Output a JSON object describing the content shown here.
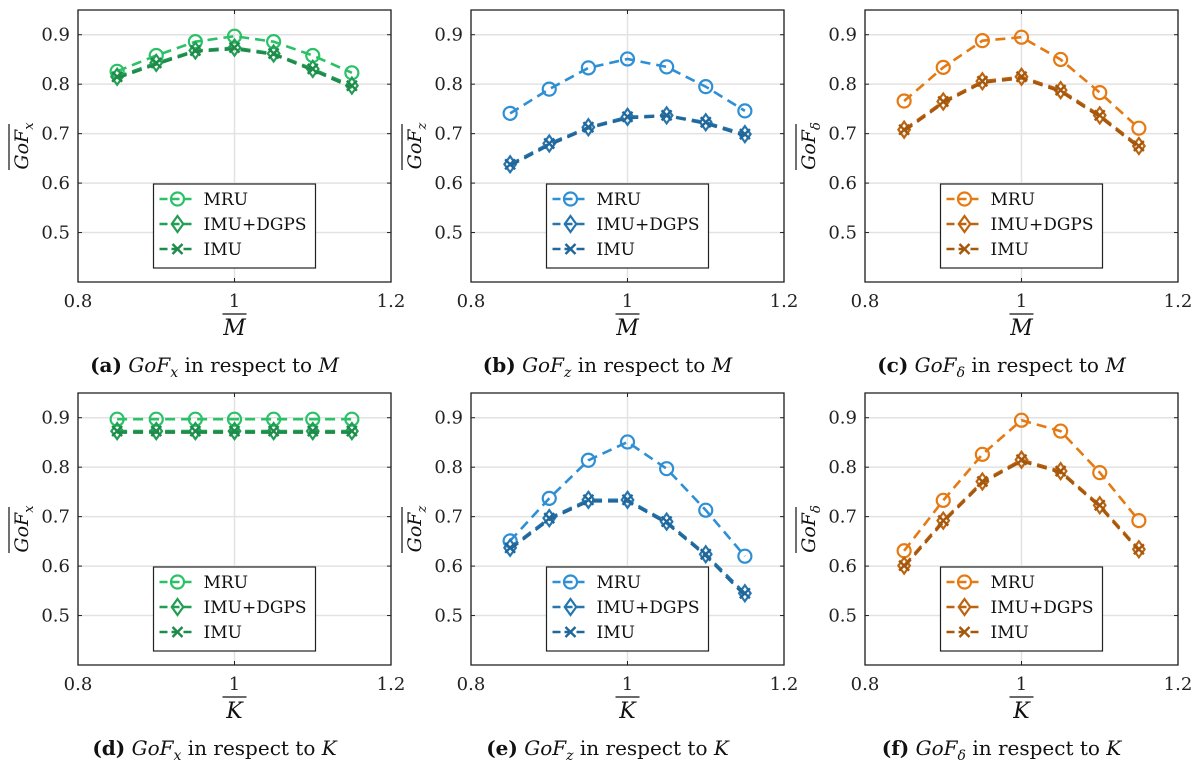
{
  "chart_data": [
    {
      "id": "a",
      "type": "line",
      "xlabel": "M",
      "ylabel": "GoF",
      "ylabel_sub": "x",
      "xlim": [
        0.8,
        1.2
      ],
      "ylim": [
        0.4,
        0.95
      ],
      "xticks": [
        "0.8",
        "1",
        "1.2"
      ],
      "yticks": [
        "0.5",
        "0.6",
        "0.7",
        "0.8",
        "0.9"
      ],
      "grid": true,
      "legend_position": "bottom-center",
      "color": "#2ac167",
      "x": [
        0.85,
        0.9,
        0.95,
        1.0,
        1.05,
        1.1,
        1.15
      ],
      "series": [
        {
          "name": "MRU",
          "marker": "circle",
          "values": [
            0.826,
            0.858,
            0.886,
            0.897,
            0.886,
            0.858,
            0.823
          ]
        },
        {
          "name": "IMU+DGPS",
          "marker": "diamond",
          "values": [
            0.815,
            0.843,
            0.868,
            0.874,
            0.862,
            0.831,
            0.797
          ]
        },
        {
          "name": "IMU",
          "marker": "x",
          "values": [
            0.812,
            0.84,
            0.866,
            0.871,
            0.86,
            0.828,
            0.793
          ]
        }
      ],
      "caption_label": "(a)",
      "caption_text": "in respect to",
      "caption_var": "M"
    },
    {
      "id": "b",
      "type": "line",
      "xlabel": "M",
      "ylabel": "GoF",
      "ylabel_sub": "z",
      "xlim": [
        0.8,
        1.2
      ],
      "ylim": [
        0.4,
        0.95
      ],
      "xticks": [
        "0.8",
        "1",
        "1.2"
      ],
      "yticks": [
        "0.5",
        "0.6",
        "0.7",
        "0.8",
        "0.9"
      ],
      "grid": true,
      "legend_position": "bottom-center",
      "color": "#2e8fd4",
      "x": [
        0.85,
        0.9,
        0.95,
        1.0,
        1.05,
        1.1,
        1.15
      ],
      "series": [
        {
          "name": "MRU",
          "marker": "circle",
          "values": [
            0.741,
            0.79,
            0.833,
            0.851,
            0.835,
            0.795,
            0.746
          ]
        },
        {
          "name": "IMU+DGPS",
          "marker": "diamond",
          "values": [
            0.638,
            0.68,
            0.713,
            0.734,
            0.737,
            0.723,
            0.699
          ]
        },
        {
          "name": "IMU",
          "marker": "x",
          "values": [
            0.635,
            0.677,
            0.711,
            0.731,
            0.736,
            0.72,
            0.696
          ]
        }
      ],
      "caption_label": "(b)",
      "caption_text": "in respect to",
      "caption_var": "M"
    },
    {
      "id": "c",
      "type": "line",
      "xlabel": "M",
      "ylabel": "GoF",
      "ylabel_sub": "δ",
      "xlim": [
        0.8,
        1.2
      ],
      "ylim": [
        0.4,
        0.95
      ],
      "xticks": [
        "0.8",
        "1",
        "1.2"
      ],
      "yticks": [
        "0.5",
        "0.6",
        "0.7",
        "0.8",
        "0.9"
      ],
      "grid": true,
      "legend_position": "bottom-center",
      "color": "#e57a12",
      "x": [
        0.85,
        0.9,
        0.95,
        1.0,
        1.05,
        1.1,
        1.15
      ],
      "series": [
        {
          "name": "MRU",
          "marker": "circle",
          "values": [
            0.766,
            0.834,
            0.888,
            0.895,
            0.85,
            0.783,
            0.711
          ]
        },
        {
          "name": "IMU+DGPS",
          "marker": "diamond",
          "values": [
            0.708,
            0.765,
            0.806,
            0.815,
            0.788,
            0.737,
            0.675
          ]
        },
        {
          "name": "IMU",
          "marker": "x",
          "values": [
            0.705,
            0.762,
            0.803,
            0.812,
            0.785,
            0.734,
            0.672
          ]
        }
      ],
      "caption_label": "(c)",
      "caption_text": "in respect to",
      "caption_var": "M"
    },
    {
      "id": "d",
      "type": "line",
      "xlabel": "K",
      "ylabel": "GoF",
      "ylabel_sub": "x",
      "xlim": [
        0.8,
        1.2
      ],
      "ylim": [
        0.4,
        0.95
      ],
      "xticks": [
        "0.8",
        "1",
        "1.2"
      ],
      "yticks": [
        "0.5",
        "0.6",
        "0.7",
        "0.8",
        "0.9"
      ],
      "grid": true,
      "legend_position": "bottom-center",
      "color": "#2ac167",
      "x": [
        0.85,
        0.9,
        0.95,
        1.0,
        1.05,
        1.1,
        1.15
      ],
      "series": [
        {
          "name": "MRU",
          "marker": "circle",
          "values": [
            0.897,
            0.897,
            0.897,
            0.897,
            0.897,
            0.897,
            0.897
          ]
        },
        {
          "name": "IMU+DGPS",
          "marker": "diamond",
          "values": [
            0.873,
            0.873,
            0.873,
            0.873,
            0.873,
            0.873,
            0.873
          ]
        },
        {
          "name": "IMU",
          "marker": "x",
          "values": [
            0.87,
            0.87,
            0.87,
            0.87,
            0.87,
            0.87,
            0.87
          ]
        }
      ],
      "caption_label": "(d)",
      "caption_text": "in respect to",
      "caption_var": "K"
    },
    {
      "id": "e",
      "type": "line",
      "xlabel": "K",
      "ylabel": "GoF",
      "ylabel_sub": "z",
      "xlim": [
        0.8,
        1.2
      ],
      "ylim": [
        0.4,
        0.95
      ],
      "xticks": [
        "0.8",
        "1",
        "1.2"
      ],
      "yticks": [
        "0.5",
        "0.6",
        "0.7",
        "0.8",
        "0.9"
      ],
      "grid": true,
      "legend_position": "bottom-center",
      "color": "#2e8fd4",
      "x": [
        0.85,
        0.9,
        0.95,
        1.0,
        1.05,
        1.1,
        1.15
      ],
      "series": [
        {
          "name": "MRU",
          "marker": "circle",
          "values": [
            0.651,
            0.737,
            0.814,
            0.851,
            0.797,
            0.713,
            0.62
          ]
        },
        {
          "name": "IMU+DGPS",
          "marker": "diamond",
          "values": [
            0.637,
            0.697,
            0.734,
            0.734,
            0.69,
            0.624,
            0.545
          ]
        },
        {
          "name": "IMU",
          "marker": "x",
          "values": [
            0.634,
            0.694,
            0.731,
            0.731,
            0.687,
            0.621,
            0.54
          ]
        }
      ],
      "caption_label": "(e)",
      "caption_text": "in respect to",
      "caption_var": "K"
    },
    {
      "id": "f",
      "type": "line",
      "xlabel": "K",
      "ylabel": "GoF",
      "ylabel_sub": "δ",
      "xlim": [
        0.8,
        1.2
      ],
      "ylim": [
        0.4,
        0.95
      ],
      "xticks": [
        "0.8",
        "1",
        "1.2"
      ],
      "yticks": [
        "0.5",
        "0.6",
        "0.7",
        "0.8",
        "0.9"
      ],
      "grid": true,
      "legend_position": "bottom-center",
      "color": "#e57a12",
      "x": [
        0.85,
        0.9,
        0.95,
        1.0,
        1.05,
        1.1,
        1.15
      ],
      "series": [
        {
          "name": "MRU",
          "marker": "circle",
          "values": [
            0.631,
            0.733,
            0.826,
            0.895,
            0.873,
            0.789,
            0.692
          ]
        },
        {
          "name": "IMU+DGPS",
          "marker": "diamond",
          "values": [
            0.601,
            0.692,
            0.771,
            0.815,
            0.792,
            0.723,
            0.634
          ]
        },
        {
          "name": "IMU",
          "marker": "x",
          "values": [
            0.598,
            0.689,
            0.768,
            0.812,
            0.789,
            0.72,
            0.631
          ]
        }
      ],
      "caption_label": "(f)",
      "caption_text": "in respect to",
      "caption_var": "K"
    }
  ]
}
